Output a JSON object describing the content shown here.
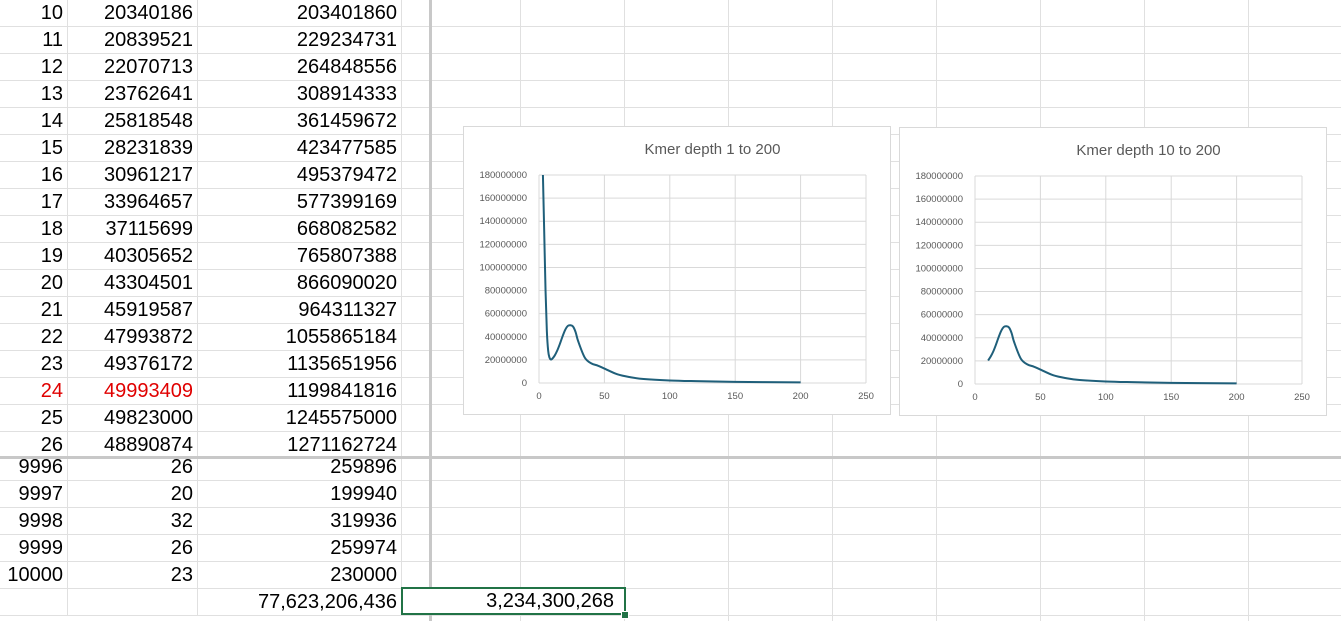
{
  "sheet": {
    "top_rows": [
      {
        "a": "10",
        "b": "20340186",
        "c": "203401860"
      },
      {
        "a": "11",
        "b": "20839521",
        "c": "229234731"
      },
      {
        "a": "12",
        "b": "22070713",
        "c": "264848556"
      },
      {
        "a": "13",
        "b": "23762641",
        "c": "308914333"
      },
      {
        "a": "14",
        "b": "25818548",
        "c": "361459672"
      },
      {
        "a": "15",
        "b": "28231839",
        "c": "423477585"
      },
      {
        "a": "16",
        "b": "30961217",
        "c": "495379472"
      },
      {
        "a": "17",
        "b": "33964657",
        "c": "577399169"
      },
      {
        "a": "18",
        "b": "37115699",
        "c": "668082582"
      },
      {
        "a": "19",
        "b": "40305652",
        "c": "765807388"
      },
      {
        "a": "20",
        "b": "43304501",
        "c": "866090020"
      },
      {
        "a": "21",
        "b": "45919587",
        "c": "964311327"
      },
      {
        "a": "22",
        "b": "47993872",
        "c": "1055865184"
      },
      {
        "a": "23",
        "b": "49376172",
        "c": "1135651956"
      },
      {
        "a": "24",
        "b": "49993409",
        "c": "1199841816",
        "highlight": "#e00000"
      },
      {
        "a": "25",
        "b": "49823000",
        "c": "1245575000"
      },
      {
        "a": "26",
        "b": "48890874",
        "c": "1271162724"
      }
    ],
    "bottom_rows": [
      {
        "a": "9996",
        "b": "26",
        "c": "259896"
      },
      {
        "a": "9997",
        "b": "20",
        "c": "199940"
      },
      {
        "a": "9998",
        "b": "32",
        "c": "319936"
      },
      {
        "a": "9999",
        "b": "26",
        "c": "259974"
      },
      {
        "a": "10000",
        "b": "23",
        "c": "230000"
      }
    ],
    "total_c": "77,623,206,436",
    "selected_value": "3,234,300,268",
    "accent_color": "#217346"
  },
  "chart_data": [
    {
      "type": "line",
      "title": "Kmer depth 1 to 200",
      "xlim": [
        0,
        250
      ],
      "ylim": [
        0,
        180000000
      ],
      "x_ticks": [
        "0",
        "50",
        "100",
        "150",
        "200",
        "250"
      ],
      "y_ticks": [
        "0",
        "20000000",
        "40000000",
        "60000000",
        "80000000",
        "100000000",
        "120000000",
        "140000000",
        "160000000",
        "180000000"
      ],
      "line_color": "#1f5f7a",
      "grid": true,
      "x": [
        3,
        4,
        5,
        6,
        7,
        8,
        9,
        10,
        12,
        14,
        16,
        18,
        20,
        22,
        24,
        26,
        28,
        30,
        35,
        40,
        45,
        50,
        60,
        70,
        80,
        100,
        120,
        150,
        200
      ],
      "y": [
        180000000,
        130000000,
        80000000,
        45000000,
        28000000,
        22000000,
        20340186,
        20839521,
        23762641,
        28231839,
        33964657,
        40305652,
        45919587,
        49376172,
        49993409,
        48890874,
        44000000,
        36000000,
        22000000,
        17000000,
        15000000,
        12500000,
        7500000,
        5000000,
        3500000,
        2200000,
        1600000,
        1000000,
        500000
      ]
    },
    {
      "type": "line",
      "title": "Kmer depth 10 to 200",
      "xlim": [
        0,
        250
      ],
      "ylim": [
        0,
        180000000
      ],
      "x_ticks": [
        "0",
        "50",
        "100",
        "150",
        "200",
        "250"
      ],
      "y_ticks": [
        "0",
        "20000000",
        "40000000",
        "60000000",
        "80000000",
        "100000000",
        "120000000",
        "140000000",
        "160000000",
        "180000000"
      ],
      "line_color": "#1f5f7a",
      "grid": true,
      "x": [
        10,
        12,
        14,
        16,
        18,
        20,
        22,
        24,
        26,
        28,
        30,
        35,
        40,
        45,
        50,
        60,
        70,
        80,
        100,
        120,
        150,
        200
      ],
      "y": [
        20340186,
        23762641,
        28231839,
        33964657,
        40305652,
        45919587,
        49376172,
        49993409,
        48890874,
        44000000,
        36000000,
        22000000,
        17000000,
        15000000,
        12500000,
        7500000,
        5000000,
        3500000,
        2200000,
        1600000,
        1000000,
        500000
      ]
    }
  ]
}
